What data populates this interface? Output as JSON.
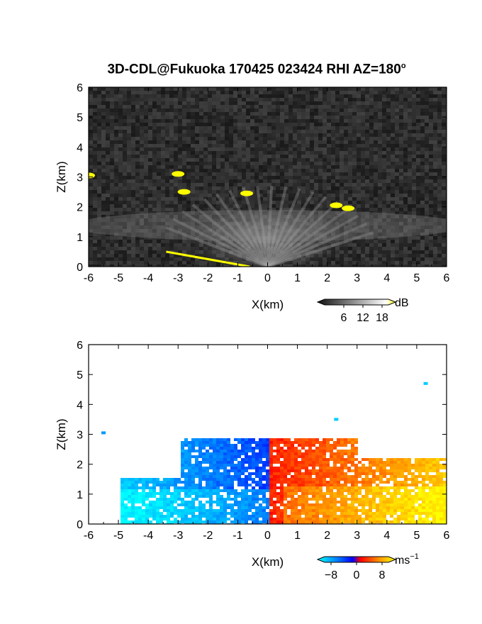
{
  "figure": {
    "title": "3D-CDL@Fukuoka 170425 023424 RHI AZ=180",
    "title_sup": "o"
  },
  "chart_data": [
    {
      "type": "heatmap",
      "name": "reflectivity",
      "xlabel": "X(km)",
      "ylabel": "Z(km)",
      "xlim": [
        -6,
        6
      ],
      "ylim": [
        0,
        6
      ],
      "x_ticks": [
        "-6",
        "-5",
        "-4",
        "-3",
        "-2",
        "-1",
        "0",
        "1",
        "2",
        "3",
        "4",
        "5",
        "6"
      ],
      "y_ticks": [
        "0",
        "1",
        "2",
        "3",
        "4",
        "5",
        "6"
      ],
      "colorbar": {
        "unit": "dB",
        "ticks": [
          "6",
          "12",
          "18"
        ],
        "range": [
          0,
          20
        ],
        "palette": "grayscale-to-yellow"
      },
      "background": "#2a2a2a",
      "features": [
        {
          "kind": "fan",
          "apex": [
            0,
            0
          ],
          "angle_range_deg": [
            25,
            155
          ],
          "length_km": 3.0,
          "value_db": 10
        },
        {
          "kind": "layer",
          "x_range": [
            -6,
            6
          ],
          "z_center": 1.8,
          "value_db": 8
        },
        {
          "kind": "spot",
          "x": -2.8,
          "z": 2.5,
          "value_db": 20
        },
        {
          "kind": "spot",
          "x": -6.0,
          "z": 3.05,
          "value_db": 20
        },
        {
          "kind": "spot",
          "x": -3.0,
          "z": 3.1,
          "value_db": 18
        },
        {
          "kind": "spot",
          "x": -0.7,
          "z": 2.45,
          "value_db": 20
        },
        {
          "kind": "spot",
          "x": 2.3,
          "z": 2.05,
          "value_db": 20
        },
        {
          "kind": "spot",
          "x": 2.7,
          "z": 1.95,
          "value_db": 20
        },
        {
          "kind": "ground_clutter",
          "x_range": [
            -3.4,
            -0.6
          ],
          "z_range": [
            0.5,
            0.0
          ],
          "value_db": 20
        }
      ]
    },
    {
      "type": "heatmap",
      "name": "doppler_velocity",
      "xlabel": "X(km)",
      "ylabel": "Z(km)",
      "xlim": [
        -6,
        6
      ],
      "ylim": [
        0,
        6
      ],
      "x_ticks": [
        "-6",
        "-5",
        "-4",
        "-3",
        "-2",
        "-1",
        "0",
        "1",
        "2",
        "3",
        "4",
        "5",
        "6"
      ],
      "y_ticks": [
        "0",
        "1",
        "2",
        "3",
        "4",
        "5",
        "6"
      ],
      "colorbar": {
        "unit": "ms",
        "unit_sup": "−1",
        "ticks": [
          "−8",
          "0",
          "8"
        ],
        "range": [
          -10,
          10
        ],
        "palette": "cyan-blue-red-yellow"
      },
      "background": "#ffffff",
      "features": [
        {
          "kind": "region",
          "x_range": [
            -5,
            0
          ],
          "z_top": 2.9,
          "velocity_ms": -4
        },
        {
          "kind": "region",
          "x_range": [
            0,
            6
          ],
          "z_top": 2.9,
          "velocity_ms": 5
        },
        {
          "kind": "spot",
          "x": -5.5,
          "z": 3.05,
          "velocity_ms": -6
        },
        {
          "kind": "spot",
          "x": 5.3,
          "z": 4.7,
          "velocity_ms": -8
        },
        {
          "kind": "spot",
          "x": 2.3,
          "z": 3.5,
          "velocity_ms": -8
        }
      ]
    }
  ]
}
